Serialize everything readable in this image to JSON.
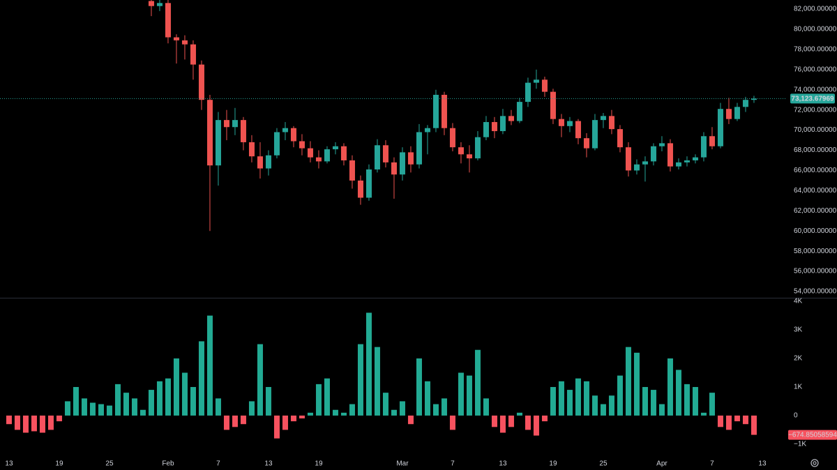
{
  "chart_data": [
    {
      "type": "candlestick",
      "x": [
        17,
        18,
        19,
        20,
        21,
        22,
        23,
        24,
        25,
        26,
        27,
        28,
        29,
        30,
        31,
        32,
        33,
        34,
        35,
        36,
        37,
        38,
        39,
        40,
        41,
        42,
        43,
        44,
        45,
        46,
        47,
        48,
        49,
        50,
        51,
        52,
        53,
        54,
        55,
        56,
        57,
        58,
        59,
        60,
        61,
        62,
        63,
        64,
        65,
        66,
        67,
        68,
        69,
        70,
        71,
        72,
        73,
        74,
        75,
        76,
        77,
        78,
        79,
        80,
        81,
        82,
        83,
        84,
        85,
        86,
        87,
        88,
        89
      ],
      "open": [
        82800,
        82300,
        82600,
        79200,
        78900,
        78500,
        76500,
        73000,
        66500,
        71000,
        70300,
        71000,
        68800,
        67400,
        66200,
        67500,
        69800,
        70200,
        68900,
        68200,
        67300,
        66900,
        68100,
        68400,
        67000,
        65000,
        63300,
        66100,
        68500,
        66800,
        65600,
        67800,
        66600,
        69800,
        70200,
        73500,
        70200,
        68300,
        67600,
        67200,
        69300,
        70800,
        69900,
        71400,
        70900,
        72800,
        74700,
        75000,
        73800,
        71100,
        70400,
        70900,
        69200,
        68200,
        71000,
        71400,
        70100,
        68300,
        66000,
        66600,
        66900,
        68400,
        68700,
        66400,
        66800,
        67000,
        67300,
        69400,
        68400,
        72100,
        71100,
        72300,
        73000
      ],
      "high": [
        83200,
        83000,
        82900,
        79500,
        79400,
        78900,
        76900,
        73500,
        71800,
        72000,
        72200,
        71300,
        69500,
        68800,
        68000,
        70200,
        70800,
        70400,
        69600,
        68900,
        68000,
        68400,
        68800,
        68700,
        67500,
        65500,
        66600,
        69100,
        69000,
        67300,
        68300,
        68400,
        70600,
        70500,
        74000,
        73800,
        70700,
        68800,
        68500,
        69900,
        71400,
        71300,
        72100,
        72000,
        73200,
        75200,
        76000,
        75300,
        74100,
        71600,
        71300,
        71100,
        69700,
        71600,
        71700,
        72000,
        70500,
        68800,
        67100,
        67400,
        68700,
        69400,
        69100,
        67200,
        67400,
        67600,
        69800,
        70300,
        72700,
        73200,
        72700,
        73300,
        73400
      ],
      "low": [
        81300,
        81800,
        78600,
        76600,
        77000,
        75000,
        72000,
        60000,
        64500,
        69000,
        69500,
        68000,
        66800,
        65200,
        65500,
        67200,
        69000,
        68300,
        67500,
        66800,
        66200,
        66700,
        67600,
        66500,
        64200,
        62600,
        63000,
        65800,
        66300,
        63200,
        65000,
        65800,
        66200,
        67600,
        69800,
        69500,
        67900,
        66700,
        65800,
        67000,
        69000,
        69200,
        69600,
        70500,
        70700,
        72300,
        74100,
        73300,
        70600,
        69300,
        69800,
        68600,
        67300,
        68000,
        70200,
        69600,
        67800,
        65400,
        65600,
        64900,
        66500,
        67900,
        65900,
        66100,
        66400,
        66700,
        66900,
        68100,
        68200,
        70600,
        70900,
        71800,
        72700
      ],
      "close": [
        82300,
        82600,
        79200,
        78900,
        78500,
        76500,
        73000,
        66500,
        71000,
        70300,
        71000,
        68800,
        67400,
        66200,
        67500,
        69800,
        70200,
        68900,
        68200,
        67300,
        66900,
        68100,
        68400,
        67000,
        65000,
        63300,
        66100,
        68500,
        66800,
        65600,
        67800,
        66600,
        69800,
        70200,
        73500,
        70200,
        68300,
        67600,
        67200,
        69300,
        70800,
        69900,
        71400,
        70900,
        72800,
        74700,
        75000,
        73800,
        71100,
        70400,
        70900,
        69200,
        68200,
        71000,
        71400,
        70100,
        68300,
        66000,
        66600,
        66900,
        68400,
        68700,
        66400,
        66800,
        67000,
        67300,
        69400,
        68400,
        72100,
        71100,
        72300,
        73000,
        73124
      ],
      "up_color": "#26a69a",
      "down_color": "#ef5350",
      "xlim": [
        -1.08,
        92.92
      ],
      "ylim": [
        53380,
        82900
      ],
      "yticks": [
        {
          "value": 82000,
          "label": "82,000.00000"
        },
        {
          "value": 80000,
          "label": "80,000.00000"
        },
        {
          "value": 78000,
          "label": "78,000.00000"
        },
        {
          "value": 76000,
          "label": "76,000.00000"
        },
        {
          "value": 74000,
          "label": "74,000.00000"
        },
        {
          "value": 72000,
          "label": "72,000.00000"
        },
        {
          "value": 70000,
          "label": "70,000.00000"
        },
        {
          "value": 68000,
          "label": "68,000.00000"
        },
        {
          "value": 66000,
          "label": "66,000.00000"
        },
        {
          "value": 64000,
          "label": "64,000.00000"
        },
        {
          "value": 62000,
          "label": "62,000.00000"
        },
        {
          "value": 60000,
          "label": "60,000.00000"
        },
        {
          "value": 58000,
          "label": "58,000.00000"
        },
        {
          "value": 56000,
          "label": "56,000.00000"
        },
        {
          "value": 54000,
          "label": "54,000.00000"
        }
      ],
      "last_price": {
        "value": 73123.67969,
        "label": "73,123.67969"
      }
    },
    {
      "type": "bar",
      "x": [
        0,
        1,
        2,
        3,
        4,
        5,
        6,
        7,
        8,
        9,
        10,
        11,
        12,
        13,
        14,
        15,
        16,
        17,
        18,
        19,
        20,
        21,
        22,
        23,
        24,
        25,
        26,
        27,
        28,
        29,
        30,
        31,
        32,
        33,
        34,
        35,
        36,
        37,
        38,
        39,
        40,
        41,
        42,
        43,
        44,
        45,
        46,
        47,
        48,
        49,
        50,
        51,
        52,
        53,
        54,
        55,
        56,
        57,
        58,
        59,
        60,
        61,
        62,
        63,
        64,
        65,
        66,
        67,
        68,
        69,
        70,
        71,
        72,
        73,
        74,
        75,
        76,
        77,
        78,
        79,
        80,
        81,
        82,
        83,
        84,
        85,
        86,
        87,
        88,
        89
      ],
      "values": [
        -300,
        -500,
        -600,
        -550,
        -600,
        -500,
        -200,
        500,
        1000,
        600,
        450,
        400,
        350,
        1100,
        800,
        600,
        200,
        900,
        1200,
        1300,
        2000,
        1500,
        1000,
        2600,
        3500,
        600,
        -500,
        -400,
        -300,
        500,
        2500,
        1000,
        -800,
        -500,
        -200,
        -100,
        100,
        1100,
        1300,
        200,
        100,
        400,
        2500,
        3600,
        2400,
        800,
        200,
        500,
        -300,
        2000,
        1200,
        400,
        600,
        -500,
        1500,
        1400,
        2300,
        600,
        -400,
        -600,
        -400,
        100,
        -500,
        -700,
        -200,
        1000,
        1200,
        900,
        1300,
        1200,
        700,
        400,
        700,
        1400,
        2400,
        2200,
        1000,
        900,
        400,
        2000,
        1600,
        1100,
        1000,
        100,
        800,
        -400,
        -500,
        -200,
        -300,
        -674.85058594
      ],
      "positive_color": "#22ab94",
      "negative_color": "#f7525f",
      "xlim": [
        -1.08,
        92.92
      ],
      "ylim": [
        -1320,
        4100
      ],
      "yticks": [
        {
          "value": 4000,
          "label": "4K"
        },
        {
          "value": 3000,
          "label": "3K"
        },
        {
          "value": 2000,
          "label": "2K"
        },
        {
          "value": 1000,
          "label": "1K"
        },
        0,
        {
          "value": -1000,
          "label": "−1K"
        }
      ],
      "xticks": [
        {
          "value": 0,
          "label": "13"
        },
        {
          "value": 6,
          "label": "19"
        },
        {
          "value": 12,
          "label": "25"
        },
        {
          "value": 19,
          "label": "Feb"
        },
        {
          "value": 25,
          "label": "7"
        },
        {
          "value": 31,
          "label": "13"
        },
        {
          "value": 37,
          "label": "19"
        },
        {
          "value": 47,
          "label": "Mar"
        },
        {
          "value": 53,
          "label": "7"
        },
        {
          "value": 59,
          "label": "13"
        },
        {
          "value": 65,
          "label": "19"
        },
        {
          "value": 71,
          "label": "25"
        },
        {
          "value": 78,
          "label": "Apr"
        },
        {
          "value": 84,
          "label": "7"
        },
        {
          "value": 90,
          "label": "13"
        }
      ],
      "last_value": {
        "value": -674.85058594,
        "label": "−674.85058594"
      }
    }
  ]
}
